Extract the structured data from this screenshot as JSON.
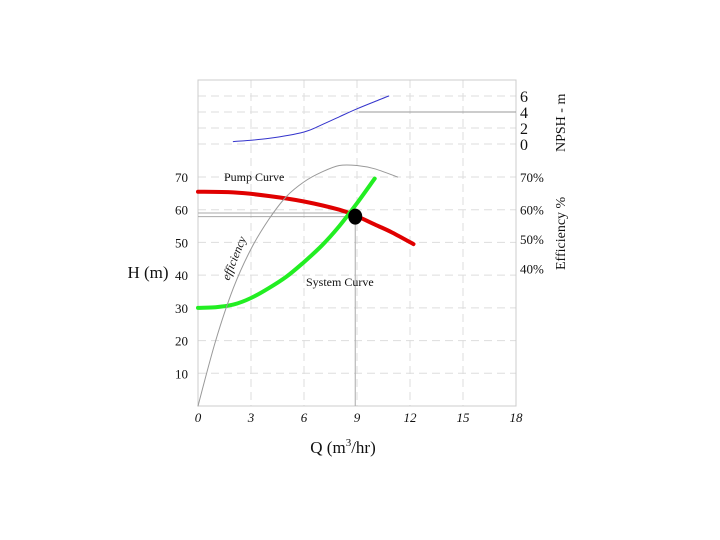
{
  "chart_data": {
    "type": "line",
    "title": "",
    "xlabel": {
      "prefix": "Q (m",
      "sup": "3",
      "suffix": "/hr)"
    },
    "ylabel": "H (m)",
    "efficiency_axis_label": "Efficiency %",
    "npsh_axis_label": "NPSH - m",
    "x_ticks": [
      "0",
      "3",
      "6",
      "9",
      "12",
      "15",
      "18"
    ],
    "xlim": [
      0,
      18
    ],
    "y_ticks": [
      "10",
      "20",
      "30",
      "40",
      "50",
      "60",
      "70"
    ],
    "ylim": [
      0,
      70
    ],
    "efficiency_ticks": [
      {
        "label": "70%",
        "h": 70
      },
      {
        "label": "60%",
        "h": 60
      },
      {
        "label": "50%",
        "h": 51
      },
      {
        "label": "40%",
        "h": 42
      }
    ],
    "npsh_ticks": [
      "6",
      "4",
      "2",
      "0"
    ],
    "npsh_range": [
      0,
      6
    ],
    "grid": true,
    "series": [
      {
        "name": "Pump Curve",
        "color": "#e00000",
        "x": [
          0,
          2,
          4,
          6,
          8,
          9,
          10,
          11,
          12.2
        ],
        "y": [
          65.5,
          65.3,
          64.2,
          62.5,
          60,
          58,
          55.5,
          53,
          49.5
        ]
      },
      {
        "name": "System Curve",
        "color": "#22ee22",
        "x": [
          0,
          1,
          2,
          3,
          4,
          5,
          6,
          7,
          8,
          9,
          10
        ],
        "y": [
          30,
          30.2,
          31,
          33,
          36,
          39.5,
          44,
          49,
          55,
          62,
          69.5
        ]
      },
      {
        "name": "efficiency",
        "color": "#999999",
        "h_values": true,
        "x": [
          0,
          1,
          2,
          3,
          4,
          5,
          6,
          7,
          8,
          9,
          10,
          11.3
        ],
        "y": [
          0,
          20,
          36,
          48,
          57,
          64,
          68.5,
          71.5,
          73.5,
          73.5,
          72.5,
          70
        ]
      },
      {
        "name": "NPSH",
        "color": "#3333cc",
        "x": [
          2,
          4,
          6,
          7,
          8,
          9,
          10,
          10.8
        ],
        "y": [
          0.3,
          0.7,
          1.5,
          2.4,
          3.4,
          4.4,
          5.3,
          6.0
        ]
      }
    ],
    "operating_point": {
      "x": 8.9,
      "y": 57.9
    },
    "reference_lines": {
      "npsh_required": 4,
      "efficiency_ref": 59
    },
    "annotations": [
      "Pump Curve",
      "System Curve",
      "efficiency"
    ]
  }
}
